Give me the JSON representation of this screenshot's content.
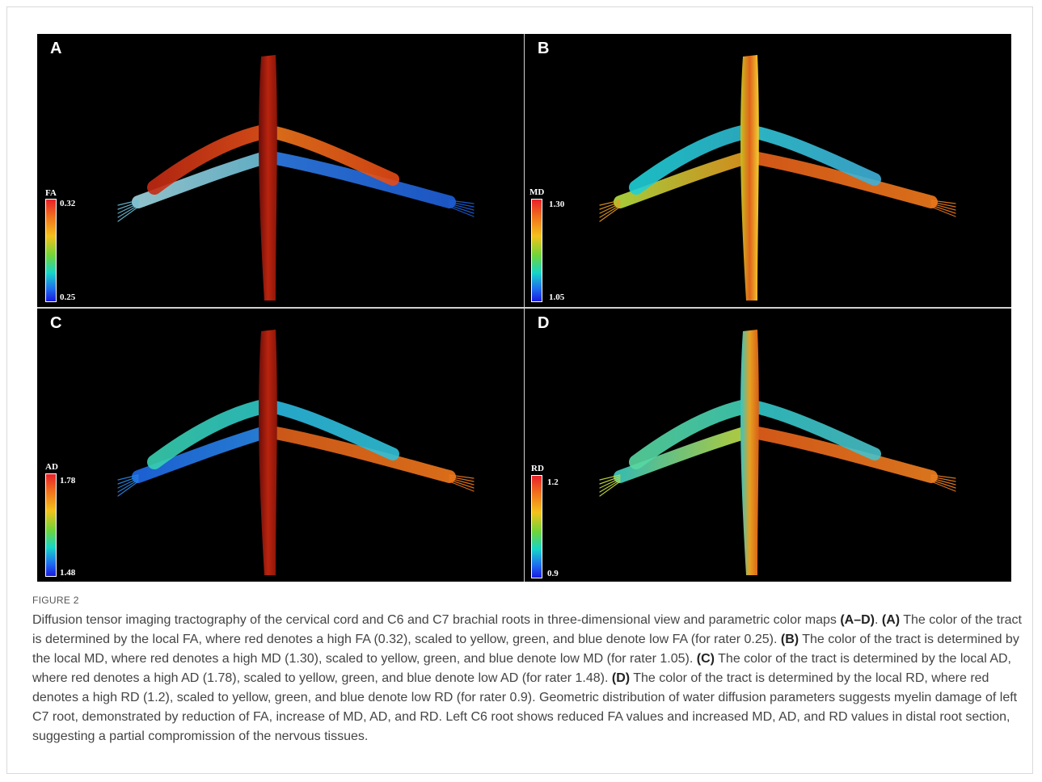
{
  "panels": [
    {
      "id": "A",
      "metric": "FA",
      "max": "0.32",
      "min": "0.25",
      "cord_colors": [
        "#6b0d08",
        "#b8240f",
        "#8a1508"
      ],
      "upper_left": [
        "#c42a12",
        "#e8531a"
      ],
      "upper_right": [
        "#f07a1c",
        "#e54a15"
      ],
      "lower_left": [
        "#9fd6e0",
        "#6bbfd8"
      ],
      "lower_right": [
        "#2f7ee8",
        "#1f5fd8"
      ]
    },
    {
      "id": "B",
      "metric": "MD",
      "max": "1.30",
      "min": "1.05",
      "cord_colors": [
        "#c8c020",
        "#e0641a",
        "#f2d030"
      ],
      "upper_left": [
        "#1fd0d8",
        "#2fb8d0"
      ],
      "upper_right": [
        "#2fc8d8",
        "#3fb0d8"
      ],
      "lower_left": [
        "#b8e040",
        "#e89a20"
      ],
      "lower_right": [
        "#e8601a",
        "#f07a1c"
      ]
    },
    {
      "id": "C",
      "metric": "AD",
      "max": "1.78",
      "min": "1.48",
      "cord_colors": [
        "#6b0d08",
        "#b8240f",
        "#8a1508"
      ],
      "upper_left": [
        "#38d0b0",
        "#2ec8c8"
      ],
      "upper_right": [
        "#2ab8e0",
        "#30c0d8"
      ],
      "lower_left": [
        "#1f6ae8",
        "#2a8ae8"
      ],
      "lower_right": [
        "#e0601a",
        "#f0781c"
      ]
    },
    {
      "id": "D",
      "metric": "RD",
      "max": "1.2",
      "min": "0.9",
      "cord_colors": [
        "#2fc8c8",
        "#e8a020",
        "#d86018"
      ],
      "upper_left": [
        "#58d8a0",
        "#40d0b8"
      ],
      "upper_right": [
        "#30c8c8",
        "#48c0c8"
      ],
      "lower_left": [
        "#40d0c0",
        "#c8e040"
      ],
      "lower_right": [
        "#e8601a",
        "#f08020"
      ]
    }
  ],
  "caption": {
    "label": "FIGURE 2",
    "segments": [
      {
        "t": "Diffusion tensor imaging tractography of the cervical cord and C6 and C7 brachial roots in three-dimensional view and parametric color maps ",
        "b": false
      },
      {
        "t": "(A–D)",
        "b": true
      },
      {
        "t": ". ",
        "b": false
      },
      {
        "t": "(A)",
        "b": true
      },
      {
        "t": " The color of the tract is determined by the local FA, where red denotes a high FA (0.32), scaled to yellow, green, and blue denote low FA (for rater 0.25). ",
        "b": false
      },
      {
        "t": "(B)",
        "b": true
      },
      {
        "t": " The color of the tract is determined by the local MD, where red denotes a high MD (1.30), scaled to yellow, green, and blue denote low MD (for rater 1.05). ",
        "b": false
      },
      {
        "t": "(C)",
        "b": true
      },
      {
        "t": " The color of the tract is determined by the local AD, where red denotes a high AD (1.78), scaled to yellow, green, and blue denote low AD (for rater 1.48). ",
        "b": false
      },
      {
        "t": "(D)",
        "b": true
      },
      {
        "t": " The color of the tract is determined by the local RD, where red denotes a high RD (1.2), scaled to yellow, green, and blue denote low RD (for rater 0.9). Geometric distribution of water diffusion parameters suggests myelin damage of left C7 root, demonstrated by reduction of FA, increase of MD, AD, and RD. Left C6 root shows reduced FA values and increased MD, AD, and RD values in distal root section, suggesting a partial compromission of the nervous tissues.",
        "b": false
      }
    ]
  }
}
